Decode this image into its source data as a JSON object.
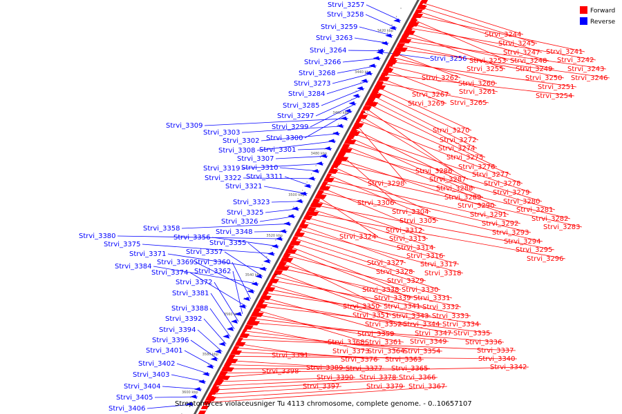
{
  "colors": {
    "forward": "#ff0000",
    "reverse": "#0000ff",
    "backbone": "#555555",
    "tick": "#000000"
  },
  "legend": {
    "forward": "Forward",
    "reverse": "Reverse"
  },
  "caption": "Streptomyces violaceusniger Tu 4113 chromosome, complete genome. - 0..10657107",
  "scale_ticks": [
    "3420 kbp",
    "3440 kbp",
    "3460 kbp",
    "3480 kbp",
    "3500 kbp",
    "3520 kbp",
    "3540 kbp",
    "3560 kbp",
    "3580 kbp",
    "3600 kbp"
  ],
  "reverse_genes": [
    "Strvi_3257",
    "Strvi_3258",
    "Strvi_3259",
    "Strvi_3263",
    "Strvi_3264",
    "Strvi_3266",
    "Strvi_3268",
    "Strvi_3273",
    "Strvi_3284",
    "Strvi_3285",
    "Strvi_3297",
    "Strvi_3299",
    "Strvi_3300",
    "Strvi_3309",
    "Strvi_3303",
    "Strvi_3302",
    "Strvi_3308",
    "Strvi_3301",
    "Strvi_3307",
    "Strvi_3319",
    "Strvi_3310",
    "Strvi_3322",
    "Strvi_3311",
    "Strvi_3321",
    "Strvi_3323",
    "Strvi_3325",
    "Strvi_3326",
    "Strvi_3358",
    "Strvi_3348",
    "Strvi_3380",
    "Strvi_3356",
    "Strvi_3375",
    "Strvi_3355",
    "Strvi_3371",
    "Strvi_3357",
    "Strvi_3384",
    "Strvi_3369",
    "Strvi_3360",
    "Strvi_3374",
    "Strvi_3362",
    "Strvi_3372",
    "Strvi_3381",
    "Strvi_3388",
    "Strvi_3392",
    "Strvi_3394",
    "Strvi_3396",
    "Strvi_3401",
    "Strvi_3402",
    "Strvi_3403",
    "Strvi_3404",
    "Strvi_3405",
    "Strvi_3406",
    "Strvi_3256"
  ],
  "forward_genes": [
    "Strvi_3244",
    "Strvi_3245",
    "Strvi_3247",
    "Strvi_3241",
    "Strvi_3253",
    "Strvi_3248",
    "Strvi_3242",
    "Strvi_3255",
    "Strvi_3249",
    "Strvi_3243",
    "Strvi_3250",
    "Strvi_3246",
    "Strvi_3262",
    "Strvi_3260",
    "Strvi_3251",
    "Strvi_3261",
    "Strvi_3267",
    "Strvi_3254",
    "Strvi_3269",
    "Strvi_3265",
    "Strvi_3270",
    "Strvi_3272",
    "Strvi_3274",
    "Strvi_3275",
    "Strvi_3276",
    "Strvi_3286",
    "Strvi_3277",
    "Strvi_3287",
    "Strvi_3278",
    "Strvi_3298",
    "Strvi_3288",
    "Strvi_3279",
    "Strvi_3289",
    "Strvi_3280",
    "Strvi_3290",
    "Strvi_3281",
    "Strvi_3306",
    "Strvi_3291",
    "Strvi_3282",
    "Strvi_3304",
    "Strvi_3283",
    "Strvi_3305",
    "Strvi_3292",
    "Strvi_3293",
    "Strvi_3312",
    "Strvi_3294",
    "Strvi_3324",
    "Strvi_3313",
    "Strvi_3295",
    "Strvi_3314",
    "Strvi_3296",
    "Strvi_3316",
    "Strvi_3317",
    "Strvi_3327",
    "Strvi_3318",
    "Strvi_3328",
    "Strvi_3329",
    "Strvi_3330",
    "Strvi_3338",
    "Strvi_3339",
    "Strvi_3331",
    "Strvi_3350",
    "Strvi_3341",
    "Strvi_3332",
    "Strvi_3351",
    "Strvi_3343",
    "Strvi_3333",
    "Strvi_3352",
    "Strvi_3344",
    "Strvi_3334",
    "Strvi_3359",
    "Strvi_3347",
    "Strvi_3335",
    "Strvi_3368",
    "Strvi_3361",
    "Strvi_3349",
    "Strvi_3336",
    "Strvi_3373",
    "Strvi_3364",
    "Strvi_3354",
    "Strvi_3337",
    "Strvi_3391",
    "Strvi_3376",
    "Strvi_3363",
    "Strvi_3340",
    "Strvi_3389",
    "Strvi_3377",
    "Strvi_3365",
    "Strvi_3342",
    "Strvi_3398",
    "Strvi_3390",
    "Strvi_3378",
    "Strvi_3366",
    "Strvi_3397",
    "Strvi_3379",
    "Strvi_3367"
  ]
}
